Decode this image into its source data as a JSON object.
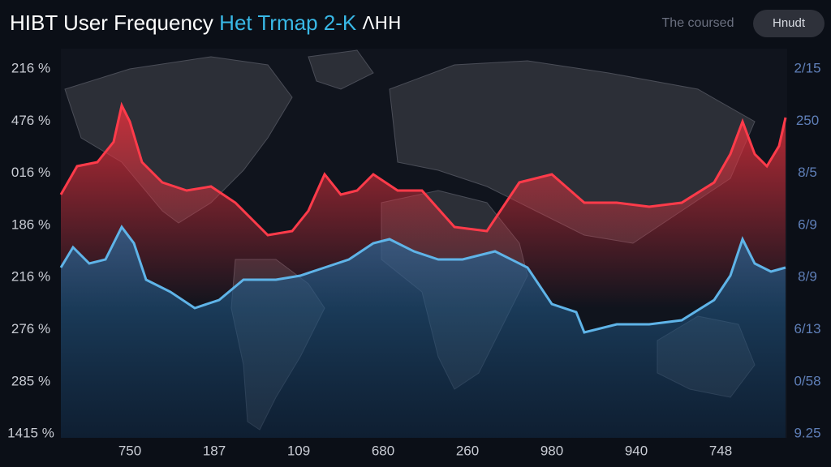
{
  "header": {
    "title": "HIBT User Frequency",
    "subtitle": "Het Trmap 2-K",
    "suffix": "ᐱᕼᕼ",
    "search_placeholder": "The coursed",
    "button": "Hnudt"
  },
  "left_axis": [
    "216 %",
    "476 %",
    "016 %",
    "186 %",
    "216 %",
    "276 %",
    "285 %",
    "1415 %"
  ],
  "right_axis": [
    "2/15",
    "250",
    "8/5",
    "6/9",
    "8/9",
    "6/13",
    "0/58",
    "9.25"
  ],
  "bottom_axis": [
    "750",
    "187",
    "109",
    "680",
    "260",
    "980",
    "940",
    "748"
  ]
}
